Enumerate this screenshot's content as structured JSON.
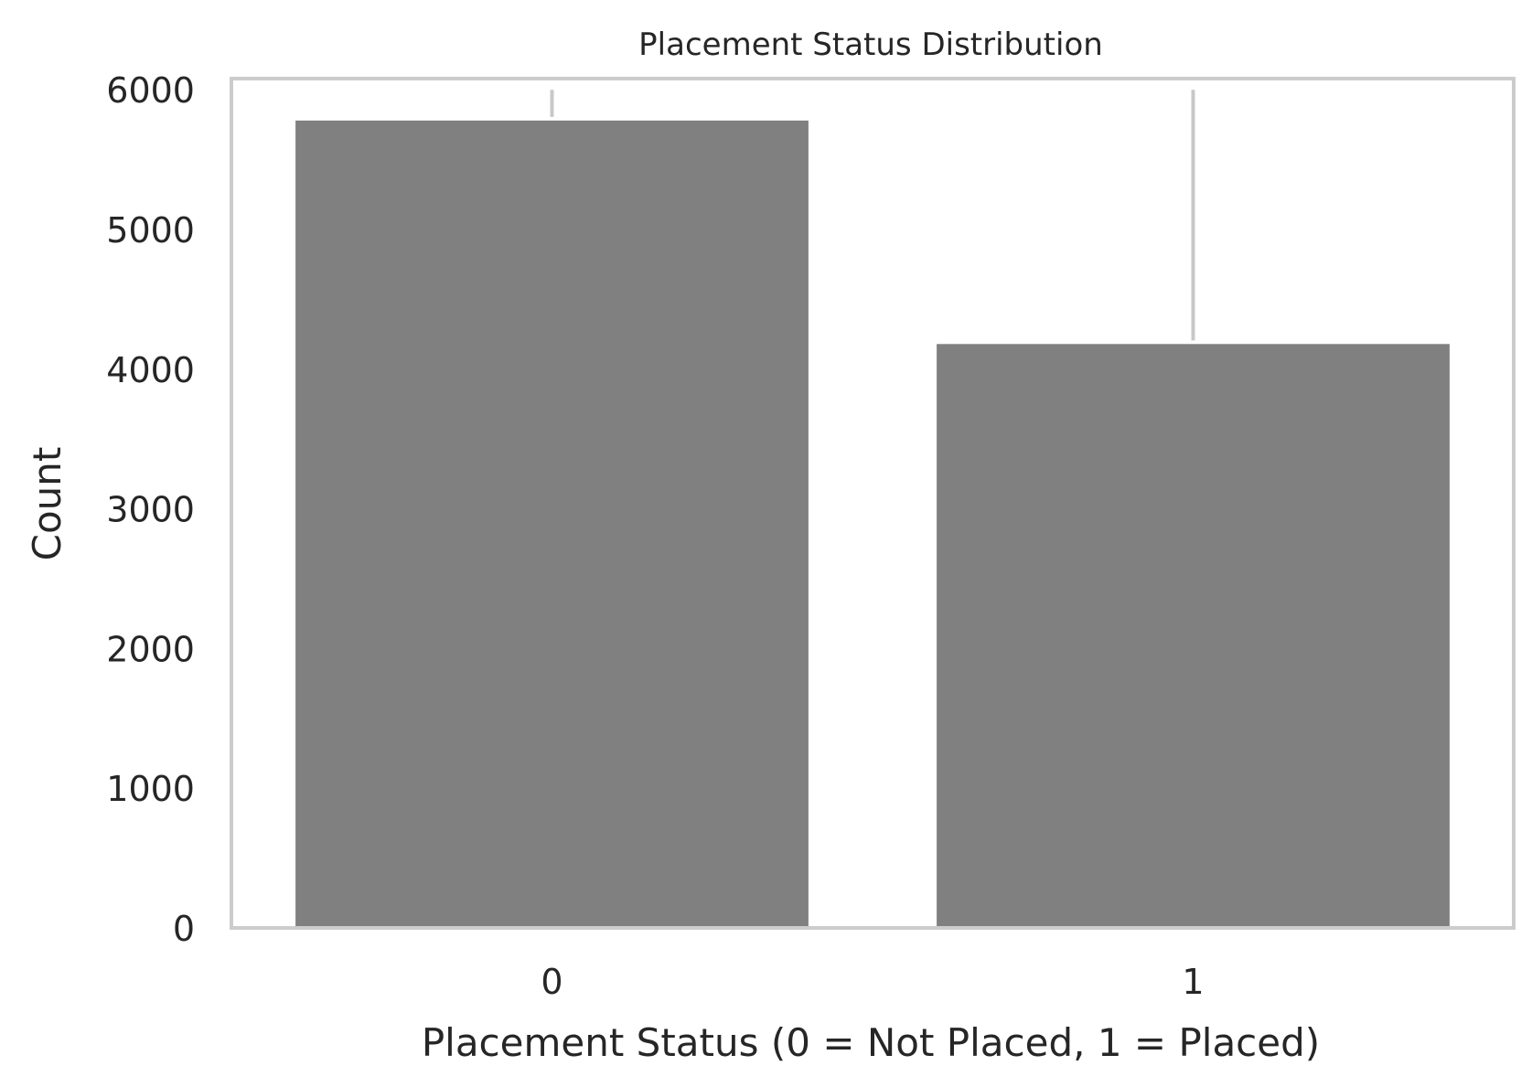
{
  "chart_data": {
    "type": "bar",
    "title": "Placement Status Distribution",
    "xlabel": "Placement Status (0 = Not Placed, 1 = Placed)",
    "ylabel": "Count",
    "categories": [
      "0",
      "1"
    ],
    "values": [
      5780,
      4180
    ],
    "error_bar_top": [
      6000,
      6000
    ],
    "ylim": [
      0,
      6080
    ],
    "yticks": [
      0,
      1000,
      2000,
      3000,
      4000,
      5000,
      6000
    ],
    "bar_color": "#808080",
    "grid": false,
    "legend": "none"
  }
}
